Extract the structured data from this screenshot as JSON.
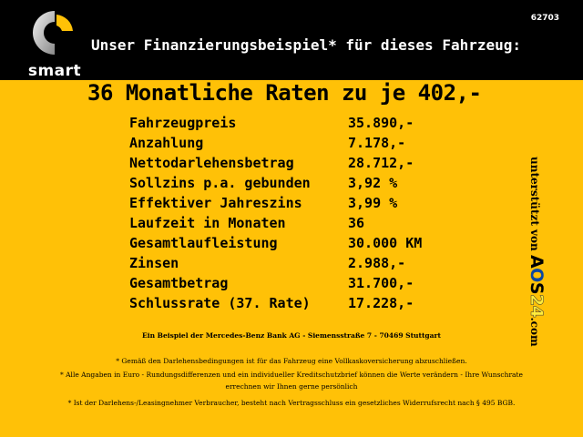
{
  "header": {
    "logo_text": "smart",
    "ref_number": "62703",
    "title": "Unser Finanzierungsbeispiel* für dieses Fahrzeug:"
  },
  "headline": "36 Monatliche Raten zu je 402,-",
  "rows": [
    {
      "label": "Fahrzeugpreis",
      "value": "35.890,-"
    },
    {
      "label": "Anzahlung",
      "value": "7.178,-"
    },
    {
      "label": "Nettodarlehensbetrag",
      "value": "28.712,-"
    },
    {
      "label": "Sollzins p.a. gebunden",
      "value": "3,92 %"
    },
    {
      "label": "Effektiver Jahreszins",
      "value": "3,99 %"
    },
    {
      "label": "Laufzeit in Monaten",
      "value": "36"
    },
    {
      "label": "Gesamtlaufleistung",
      "value": "30.000 KM"
    },
    {
      "label": "Zinsen",
      "value": "2.988,-"
    },
    {
      "label": "Gesamtbetrag",
      "value": "31.700,-"
    },
    {
      "label": "Schlussrate (37. Rate)",
      "value": "17.228,-"
    }
  ],
  "side": {
    "prefix": "unterstützt von ",
    "brand_a": "A",
    "brand_o": "O",
    "brand_s": "S",
    "brand_24": "24",
    "suffix": ".com"
  },
  "bank_line": "Ein Beispiel der Mercedes-Benz Bank AG - Siemensstraße 7 - 70469 Stuttgart",
  "notes": [
    "* Gemäß den Darlehensbedingungen ist für das Fahrzeug eine Vollkaskoversicherung abzuschließen.",
    "* Alle Angaben in Euro - Rundungsdifferenzen und ein individueller Kreditschutzbrief können die Werte verändern - Ihre Wunschrate errechnen wir Ihnen gerne persönlich",
    "* Ist der Darlehens-/Leasingnehmer Verbraucher, besteht nach Vertragsschluss ein gesetzliches Widerrufsrecht nach § 495 BGB."
  ],
  "colors": {
    "background": "#ffc107",
    "header": "#000000",
    "logo_accent": "#ffc107",
    "logo_ring": "#c8c8c8"
  }
}
